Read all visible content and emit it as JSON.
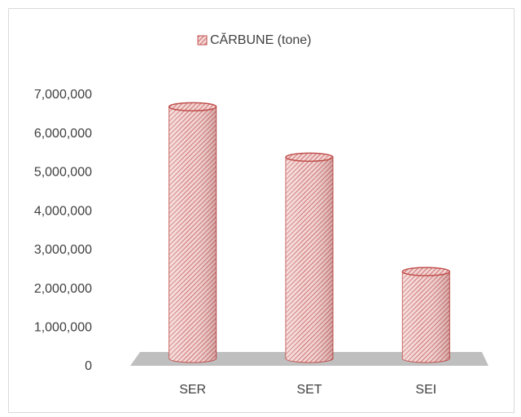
{
  "chart_data": {
    "type": "bar",
    "categories": [
      "SER",
      "SET",
      "SEI"
    ],
    "series": [
      {
        "name": "CĂRBUNE (tone)",
        "color": "#c0504d",
        "values": [
          6700000,
          5400000,
          2450000
        ]
      }
    ],
    "ylim": [
      0,
      7000000
    ],
    "yticks": [
      0,
      {
        "value": 1000000,
        "label": "1,000,000"
      },
      {
        "value": 2000000,
        "label": "2,000,000"
      },
      {
        "value": 3000000,
        "label": "3,000,000"
      },
      {
        "value": 4000000,
        "label": "4,000,000"
      },
      {
        "value": 5000000,
        "label": "5,000,000"
      },
      {
        "value": 6000000,
        "label": "6,000,000"
      },
      {
        "value": 7000000,
        "label": "7,000,000"
      }
    ],
    "grid": false
  }
}
